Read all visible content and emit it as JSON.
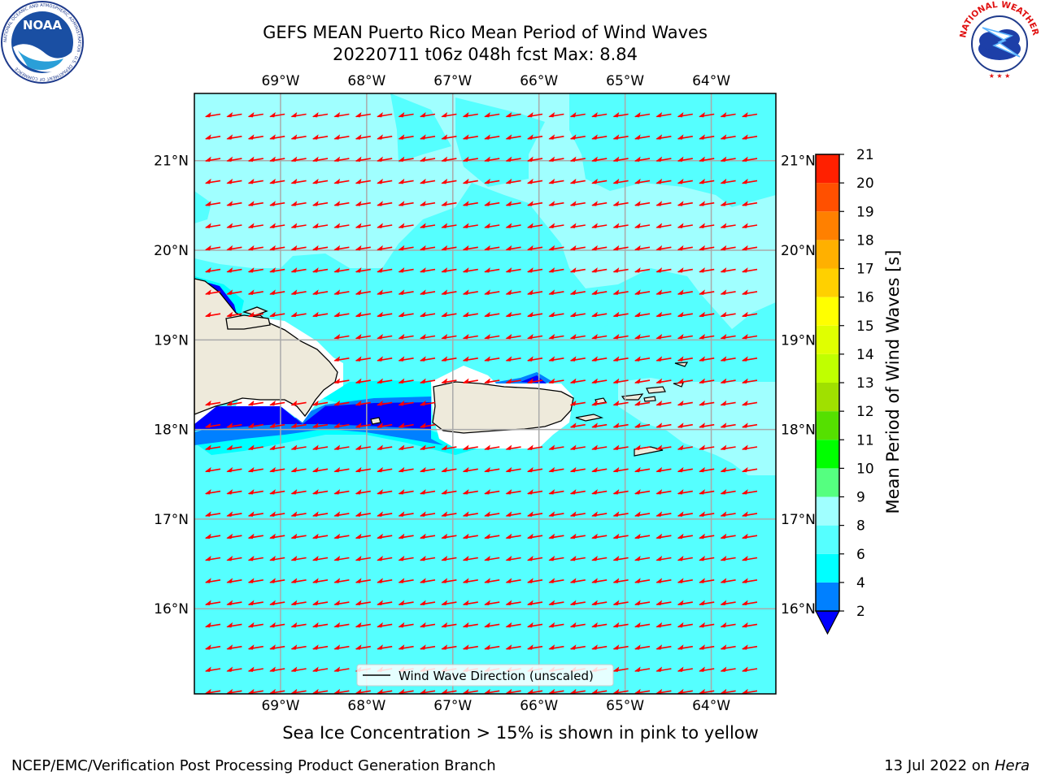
{
  "header": {
    "title_line1": "GEFS MEAN Puerto Rico Mean Period of Wind Waves",
    "title_line2": "20220711 t06z 048h fcst   Max: 8.84",
    "noaa_logo_text": "NOAA",
    "noaa_ring_text": "NATIONAL OCEANIC AND ATMOSPHERIC ADMINISTRATION · U.S. DEPARTMENT OF COMMERCE",
    "nws_ring_text": "NATIONAL WEATHER SERVICE"
  },
  "map": {
    "lon_labels": [
      "69°W",
      "68°W",
      "67°W",
      "66°W",
      "65°W",
      "64°W"
    ],
    "lat_labels": [
      "21°N",
      "20°N",
      "19°N",
      "18°N",
      "17°N",
      "16°N"
    ],
    "lon_values": [
      -69,
      -68,
      -67,
      -66,
      -65,
      -64
    ],
    "lat_values": [
      21,
      20,
      19,
      18,
      17,
      16
    ],
    "lon_range": [
      -70,
      -63.25
    ],
    "lat_range": [
      15.05,
      21.75
    ],
    "legend_label": "Wind Wave Direction (unscaled)",
    "arrow_color": "#ff0000",
    "land_color": "#eeeadb",
    "grid": true
  },
  "colorbar": {
    "label": "Mean Period of Wind Waves [s]",
    "ticks": [
      "2",
      "4",
      "6",
      "8",
      "9",
      "10",
      "11",
      "12",
      "13",
      "14",
      "15",
      "16",
      "17",
      "18",
      "19",
      "20",
      "21"
    ],
    "colors": [
      "#0000ff",
      "#0080ff",
      "#00ffff",
      "#55ffff",
      "#a0ffff",
      "#55ff80",
      "#00ff00",
      "#55e000",
      "#a0e000",
      "#c0ff00",
      "#e0ff00",
      "#ffff00",
      "#ffd000",
      "#ffb000",
      "#ff8000",
      "#ff5000",
      "#ff2000",
      "#ff0000"
    ]
  },
  "subtitle": "Sea Ice Concentration > 15% is shown in pink to yellow",
  "footer": {
    "left": "NCEP/EMC/Verification Post Processing Product Generation Branch",
    "right_prefix": "13 Jul 2022 on ",
    "right_host": "Hera"
  }
}
